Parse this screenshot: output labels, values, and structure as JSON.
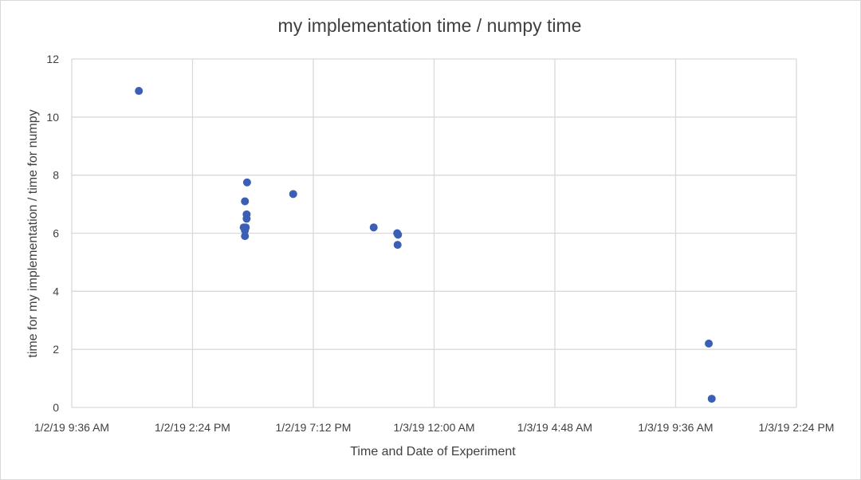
{
  "chart_data": {
    "type": "scatter",
    "title": "my implementation time / numpy time",
    "xlabel": "Time and Date of Experiment",
    "ylabel": "time for my implementation / time for numpy",
    "x_tick_labels": [
      "1/2/19 9:36 AM",
      "1/2/19 2:24 PM",
      "1/2/19 7:12 PM",
      "1/3/19 12:00 AM",
      "1/3/19 4:48 AM",
      "1/3/19 9:36 AM",
      "1/3/19 2:24 PM"
    ],
    "xlim": [
      "1/2/19 9:36 AM",
      "1/3/19 2:24 PM"
    ],
    "ylim": [
      0,
      12
    ],
    "y_ticks": [
      0,
      2,
      4,
      6,
      8,
      10,
      12
    ],
    "grid": true,
    "series": [
      {
        "color": "#3a5fb5",
        "points": [
          {
            "x": "1/2/19 12:16 PM",
            "y": 10.9
          },
          {
            "x": "1/2/19 4:29 PM",
            "y": 7.1
          },
          {
            "x": "1/2/19 4:34 PM",
            "y": 7.75
          },
          {
            "x": "1/2/19 4:33 PM",
            "y": 6.65
          },
          {
            "x": "1/2/19 4:33 PM",
            "y": 6.5
          },
          {
            "x": "1/2/19 4:26 PM",
            "y": 6.2
          },
          {
            "x": "1/2/19 4:31 PM",
            "y": 6.2
          },
          {
            "x": "1/2/19 4:29 PM",
            "y": 6.1
          },
          {
            "x": "1/2/19 4:29 PM",
            "y": 5.9
          },
          {
            "x": "1/2/19 6:24 PM",
            "y": 7.35
          },
          {
            "x": "1/2/19 9:36 PM",
            "y": 6.2
          },
          {
            "x": "1/2/19 10:32 PM",
            "y": 6.0
          },
          {
            "x": "1/2/19 10:34 PM",
            "y": 5.95
          },
          {
            "x": "1/2/19 10:33 PM",
            "y": 5.6
          },
          {
            "x": "1/3/19 10:55 AM",
            "y": 2.2
          },
          {
            "x": "1/3/19 11:02 AM",
            "y": 0.3
          }
        ]
      }
    ]
  }
}
